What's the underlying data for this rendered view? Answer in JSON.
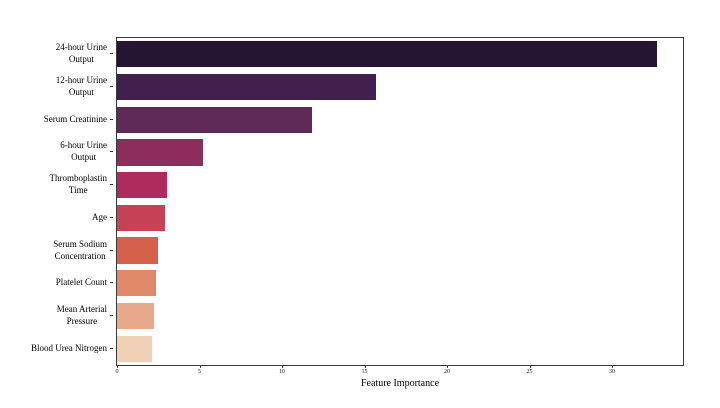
{
  "chart_data": {
    "type": "bar",
    "orientation": "horizontal",
    "title": "",
    "xlabel": "Feature Importance",
    "ylabel": "",
    "xlim": [
      0,
      34.3
    ],
    "xticks": [
      0,
      5,
      10,
      15,
      20,
      25,
      30
    ],
    "grid": false,
    "legend": null,
    "categories": [
      "24-hour Urine\nOutput",
      "12-hour Urine\nOutput",
      "Serum Creatinine",
      "6-hour Urine\nOutput",
      "Thromboplastin\nTime",
      "Age",
      "Serum Sodium\nConcentration",
      "Platelet Count",
      "Mean Arterial\nPressure",
      "Blood Urea Nitrogen"
    ],
    "values": [
      32.7,
      15.7,
      11.8,
      5.2,
      3.0,
      2.9,
      2.5,
      2.35,
      2.25,
      2.1
    ],
    "bar_colors": [
      "#251432",
      "#41204d",
      "#5f2a58",
      "#8c2d5e",
      "#ae2b5e",
      "#c64357",
      "#d5604c",
      "#e0886a",
      "#e9aa8b",
      "#f1d1b5"
    ],
    "spine_color": "#3a3a3a",
    "background_color": "#ffffff"
  }
}
